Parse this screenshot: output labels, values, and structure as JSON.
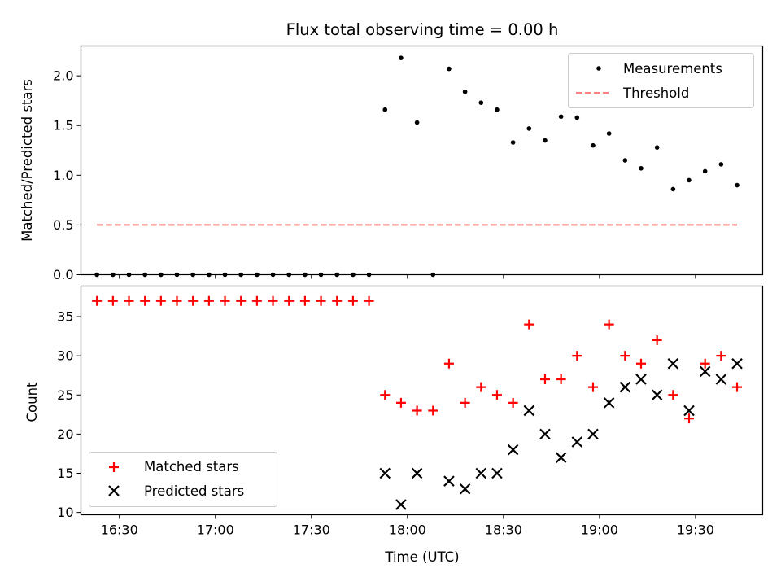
{
  "title": "Flux total observing time = 0.00 h",
  "xlabel": "Time (UTC)",
  "x_ticks": [
    "16:30",
    "17:00",
    "17:30",
    "18:00",
    "18:30",
    "19:00",
    "19:30"
  ],
  "chart_data": [
    {
      "type": "scatter",
      "ylabel": "Matched/Predicted stars",
      "x_axis": "Time (UTC)",
      "xlim": [
        "16:18",
        "19:51"
      ],
      "ylim": [
        0,
        2.3
      ],
      "yticks": [
        "0.0",
        "0.5",
        "1.0",
        "1.5",
        "2.0"
      ],
      "legend_position": "top-right",
      "series": [
        {
          "name": "Measurements",
          "color": "#000000",
          "marker": "dot",
          "x": [
            "16:23",
            "16:25",
            "16:28",
            "16:30",
            "16:33",
            "16:35",
            "16:38",
            "16:40",
            "16:43",
            "16:45",
            "16:48",
            "16:50",
            "16:53",
            "16:55",
            "16:58",
            "17:00",
            "17:03",
            "17:05",
            "17:08",
            "17:10",
            "17:13",
            "17:15",
            "17:18",
            "17:20",
            "17:23",
            "17:25",
            "17:28",
            "17:30",
            "17:33",
            "17:35",
            "17:38",
            "17:40",
            "17:43",
            "17:45",
            "17:48",
            "17:50",
            "17:53",
            "17:55",
            "17:58",
            "18:00",
            "18:03",
            "18:05",
            "18:08",
            "18:10",
            "18:13",
            "18:15",
            "18:18",
            "18:20",
            "18:23",
            "18:25",
            "18:28",
            "18:30",
            "18:33",
            "18:35",
            "18:38",
            "18:40",
            "18:43",
            "18:45",
            "18:48",
            "18:50",
            "18:53",
            "18:55",
            "18:58",
            "19:00",
            "19:03",
            "19:05",
            "19:08",
            "19:10",
            "19:13",
            "19:15",
            "19:18",
            "19:20",
            "19:23",
            "19:25",
            "19:28",
            "19:30",
            "19:33",
            "19:35",
            "19:38",
            "19:40",
            "19:43"
          ],
          "y": [
            0,
            null,
            0,
            null,
            0,
            null,
            0,
            null,
            0,
            null,
            0,
            null,
            0,
            null,
            0,
            null,
            0,
            null,
            0,
            null,
            0,
            null,
            0,
            null,
            0,
            null,
            0,
            null,
            0,
            null,
            0,
            null,
            0,
            null,
            0,
            null,
            1.66,
            null,
            2.18,
            null,
            1.53,
            null,
            0,
            null,
            2.07,
            null,
            1.84,
            null,
            1.73,
            null,
            1.66,
            null,
            1.33,
            null,
            1.47,
            null,
            1.35,
            null,
            1.59,
            null,
            1.58,
            null,
            1.3,
            null,
            1.42,
            null,
            1.15,
            null,
            1.07,
            null,
            1.28,
            null,
            0.86,
            null,
            0.95,
            null,
            1.04,
            null,
            1.11,
            null,
            0.9
          ]
        },
        {
          "name": "Threshold",
          "color": "#ff7f7f",
          "line_style": "dashed",
          "x": [
            "16:23",
            "19:43"
          ],
          "y": [
            0.5,
            0.5
          ]
        }
      ]
    },
    {
      "type": "scatter",
      "ylabel": "Count",
      "x_axis": "Time (UTC)",
      "xlim": [
        "16:18",
        "19:51"
      ],
      "ylim": [
        9.7,
        38.9
      ],
      "yticks": [
        "10",
        "15",
        "20",
        "25",
        "30",
        "35"
      ],
      "legend_position": "bottom-left",
      "series": [
        {
          "name": "Matched stars",
          "color": "#ff0000",
          "marker": "plus",
          "x": [
            "16:23",
            "16:28",
            "16:33",
            "16:38",
            "16:43",
            "16:48",
            "16:53",
            "16:58",
            "17:03",
            "17:08",
            "17:13",
            "17:18",
            "17:23",
            "17:28",
            "17:33",
            "17:38",
            "17:43",
            "17:48",
            "17:53",
            "17:58",
            "18:03",
            "18:08",
            "18:13",
            "18:18",
            "18:23",
            "18:28",
            "18:33",
            "18:38",
            "18:43",
            "18:48",
            "18:53",
            "18:58",
            "19:03",
            "19:08",
            "19:13",
            "19:18",
            "19:23",
            "19:28",
            "19:33",
            "19:38",
            "19:43"
          ],
          "y": [
            37,
            37,
            37,
            37,
            37,
            37,
            37,
            37,
            37,
            37,
            37,
            37,
            37,
            37,
            37,
            37,
            37,
            37,
            25,
            24,
            23,
            23,
            29,
            24,
            26,
            25,
            24,
            34,
            27,
            27,
            30,
            26,
            34,
            30,
            29,
            32,
            25,
            22,
            29,
            30,
            26
          ]
        },
        {
          "name": "Predicted stars",
          "color": "#000000",
          "marker": "x",
          "x": [
            "17:53",
            "17:58",
            "18:03",
            "18:13",
            "18:18",
            "18:23",
            "18:28",
            "18:33",
            "18:38",
            "18:43",
            "18:48",
            "18:53",
            "18:58",
            "19:03",
            "19:08",
            "19:13",
            "19:18",
            "19:23",
            "19:28",
            "19:33",
            "19:38",
            "19:43"
          ],
          "y": [
            15,
            11,
            15,
            14,
            13,
            15,
            15,
            18,
            23,
            20,
            17,
            19,
            20,
            24,
            26,
            27,
            25,
            29,
            23,
            28,
            27,
            29
          ]
        }
      ]
    }
  ]
}
